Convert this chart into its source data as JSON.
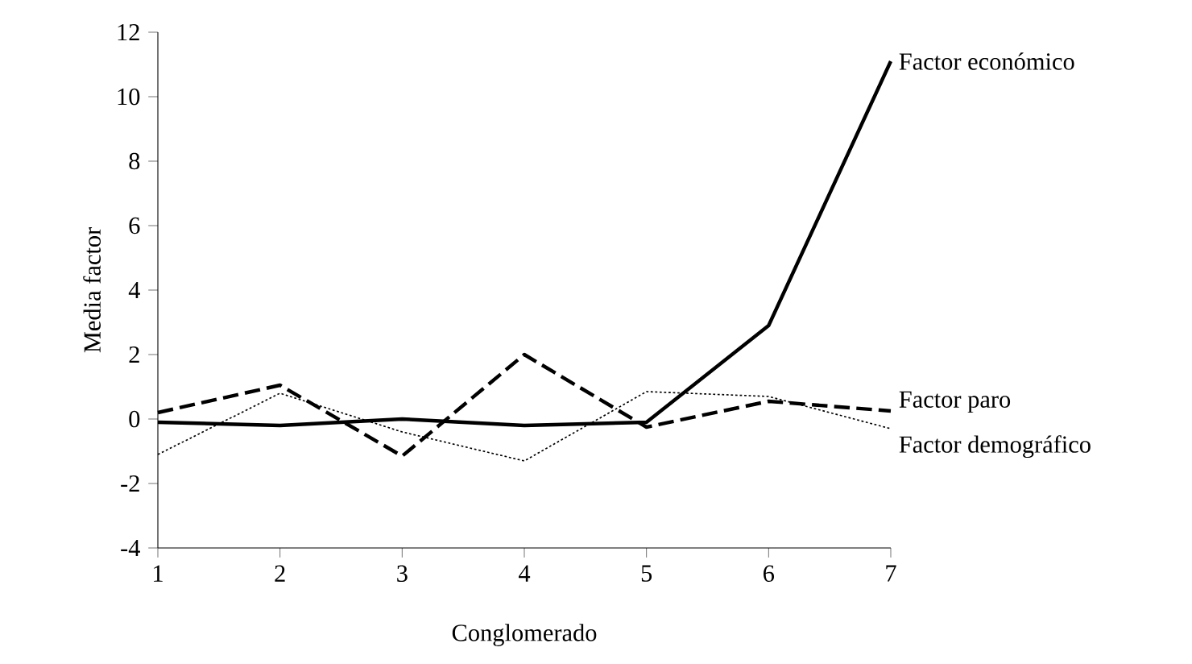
{
  "chart_data": {
    "type": "line",
    "xlabel": "Conglomerado",
    "ylabel": "Media factor",
    "x": [
      1,
      2,
      3,
      4,
      5,
      6,
      7
    ],
    "xlim": [
      1,
      7
    ],
    "xticks": [
      1,
      2,
      3,
      4,
      5,
      6,
      7
    ],
    "ylim": [
      -4,
      12
    ],
    "yticks": [
      -4,
      -2,
      0,
      2,
      4,
      6,
      8,
      10,
      12
    ],
    "grid": false,
    "series": [
      {
        "name": "Factor económico",
        "color": "#000000",
        "line_style": "solid",
        "values": [
          -0.1,
          -0.2,
          0,
          -0.2,
          -0.1,
          2.9,
          11.1
        ]
      },
      {
        "name": "Factor paro",
        "color": "#000000",
        "line_style": "dashed",
        "values": [
          0.2,
          1.05,
          -1.15,
          2.0,
          -0.25,
          0.55,
          0.25
        ]
      },
      {
        "name": "Factor demográfico",
        "color": "#000000",
        "line_style": "dotted",
        "values": [
          -1.1,
          0.8,
          -0.4,
          -1.3,
          0.85,
          0.7,
          -0.3
        ]
      }
    ]
  }
}
